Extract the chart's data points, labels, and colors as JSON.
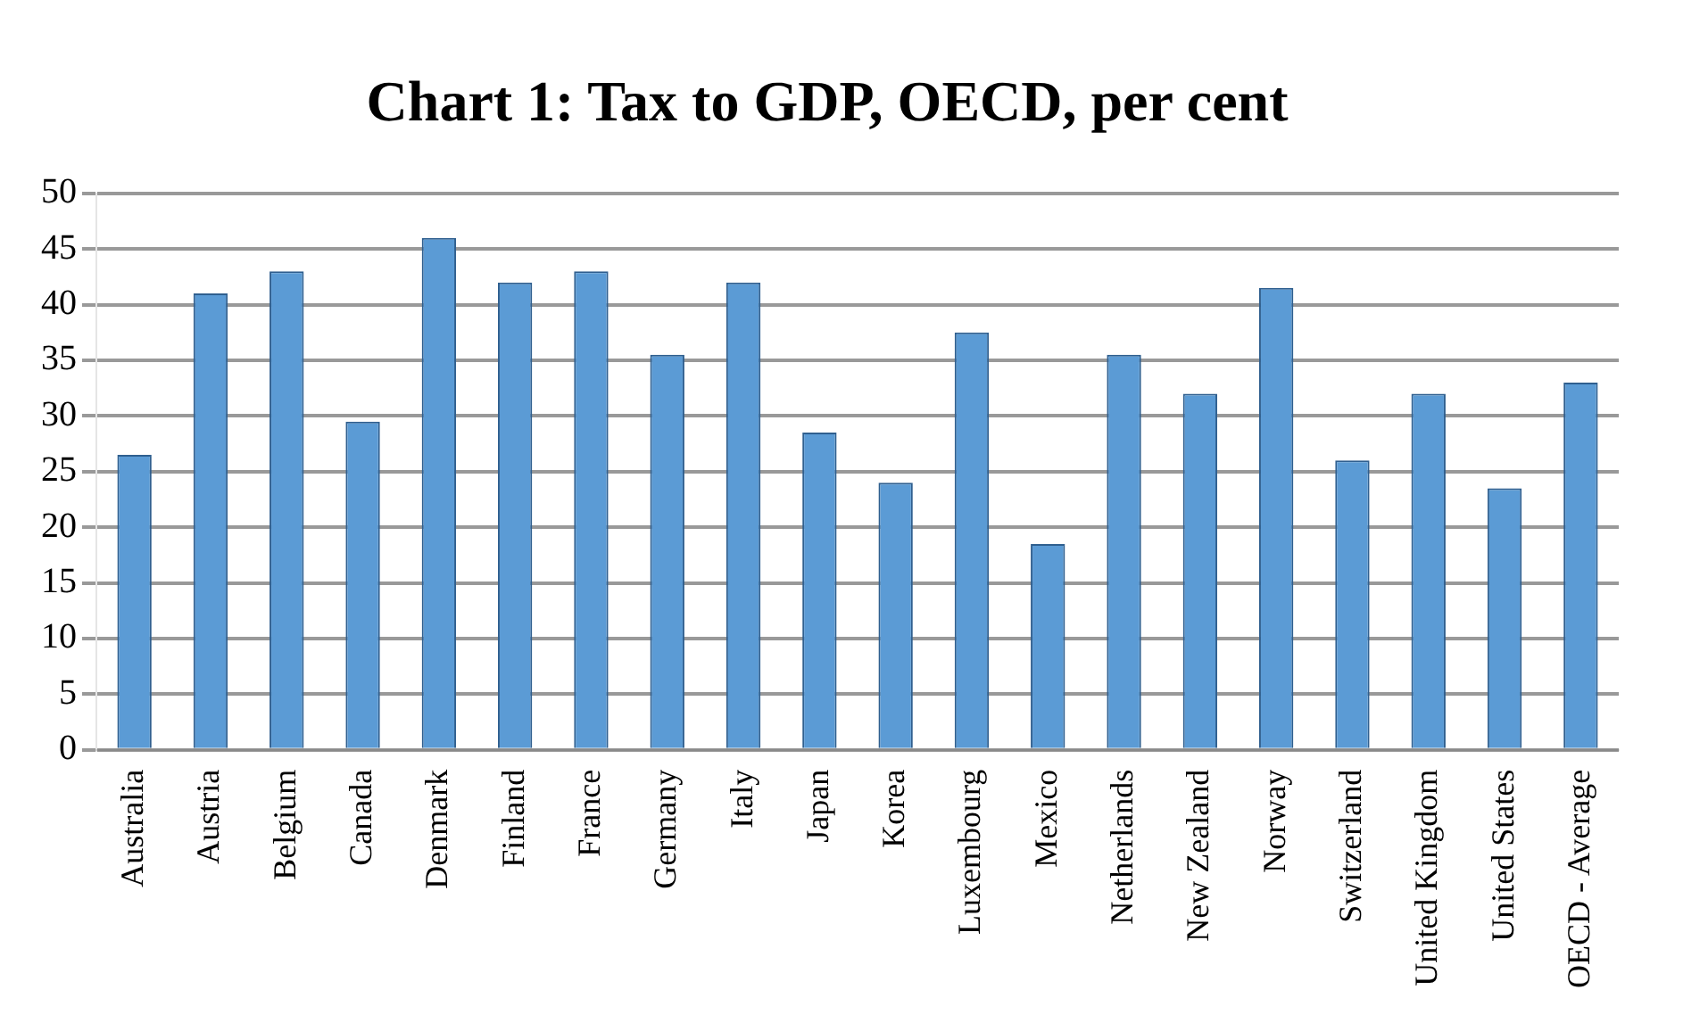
{
  "chart_data": {
    "type": "bar",
    "title": "Chart 1: Tax to GDP, OECD, per cent",
    "categories": [
      "Australia",
      "Austria",
      "Belgium",
      "Canada",
      "Denmark",
      "Finland",
      "France",
      "Germany",
      "Italy",
      "Japan",
      "Korea",
      "Luxembourg",
      "Mexico",
      "Netherlands",
      "New Zealand",
      "Norway",
      "Switzerland",
      "United Kingdom",
      "United States",
      "OECD - Average"
    ],
    "values": [
      26.5,
      41,
      43,
      29.5,
      46,
      42,
      43,
      35.5,
      42,
      28.5,
      24,
      37.5,
      18.5,
      35.5,
      32,
      41.5,
      26,
      32,
      23.5,
      33
    ],
    "color": "#5b9bd5",
    "ylim": [
      0,
      50
    ],
    "yticks": [
      0,
      5,
      10,
      15,
      20,
      25,
      30,
      35,
      40,
      45,
      50
    ],
    "grid": "y"
  }
}
